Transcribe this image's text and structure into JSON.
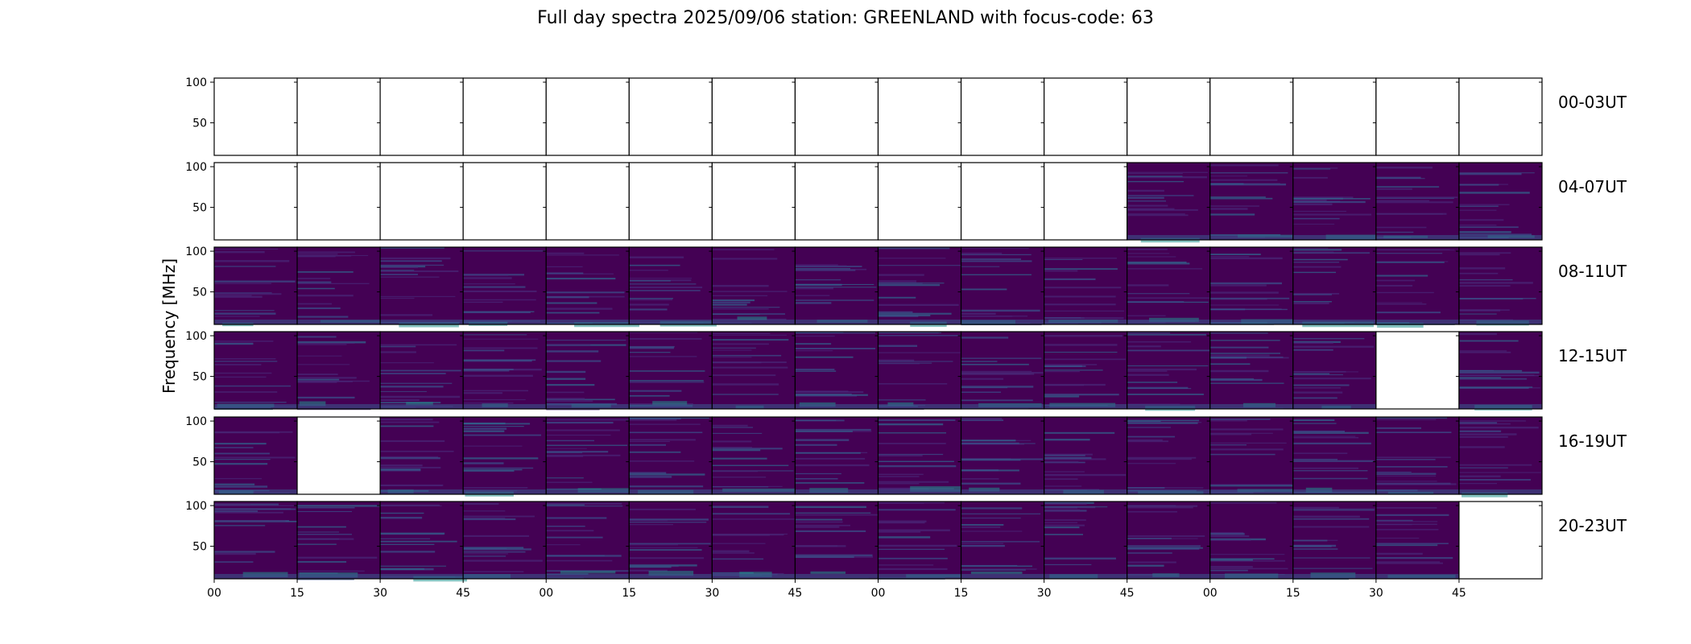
{
  "title": "Full day spectra 2025/09/06 station: GREENLAND with focus-code: 63",
  "chart_data": {
    "type": "heatmap",
    "title": "Full day spectra 2025/09/06 station: GREENLAND with focus-code: 63",
    "ylabel": "Frequency [MHz]",
    "xlabel": "",
    "ylim": [
      10,
      105
    ],
    "yticks": [
      50,
      100
    ],
    "xtick_labels": [
      "00",
      "15",
      "30",
      "45",
      "00",
      "15",
      "30",
      "45",
      "00",
      "15",
      "30",
      "45",
      "00",
      "15",
      "30",
      "45"
    ],
    "colormap": "viridis",
    "background_color": "#440154",
    "panels_per_row": 16,
    "rows": [
      {
        "label": "00-03UT",
        "panels": [
          0,
          0,
          0,
          0,
          0,
          0,
          0,
          0,
          0,
          0,
          0,
          0,
          0,
          0,
          0,
          0
        ]
      },
      {
        "label": "04-07UT",
        "panels": [
          0,
          0,
          0,
          0,
          0,
          0,
          0,
          0,
          0,
          0,
          0,
          1,
          1,
          1,
          1,
          1
        ]
      },
      {
        "label": "08-11UT",
        "panels": [
          1,
          1,
          1,
          1,
          1,
          1,
          1,
          1,
          1,
          1,
          1,
          1,
          1,
          1,
          1,
          1
        ]
      },
      {
        "label": "12-15UT",
        "panels": [
          1,
          1,
          1,
          1,
          1,
          1,
          1,
          1,
          1,
          1,
          1,
          1,
          1,
          1,
          0,
          1
        ]
      },
      {
        "label": "16-19UT",
        "panels": [
          1,
          0,
          1,
          1,
          1,
          1,
          1,
          1,
          1,
          1,
          1,
          1,
          1,
          1,
          1,
          1
        ]
      },
      {
        "label": "20-23UT",
        "panels": [
          1,
          1,
          1,
          1,
          1,
          1,
          1,
          1,
          1,
          1,
          1,
          1,
          1,
          1,
          1,
          0
        ]
      }
    ]
  }
}
